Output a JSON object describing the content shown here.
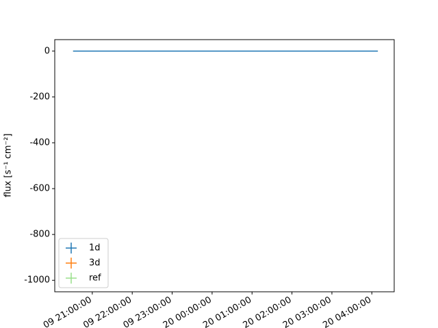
{
  "chart_data": {
    "type": "line",
    "ylabel": "flux [s⁻¹ cm⁻²]",
    "x": [
      -0.48,
      7.15
    ],
    "series": [
      {
        "name": "1d",
        "color": "#1f77b4",
        "values": [
          0,
          0
        ]
      },
      {
        "name": "3d",
        "color": "#ff7f0e",
        "values": [
          0,
          0
        ]
      },
      {
        "name": "ref",
        "color": "#98df8a",
        "values": [
          0,
          0
        ]
      }
    ],
    "xlim": [
      -0.94,
      7.56
    ],
    "xticks": [
      {
        "value": 0,
        "label": "09 21:00:00"
      },
      {
        "value": 1,
        "label": "09 22:00:00"
      },
      {
        "value": 2,
        "label": "09 23:00:00"
      },
      {
        "value": 3,
        "label": "20 00:00:00"
      },
      {
        "value": 4,
        "label": "20 01:00:00"
      },
      {
        "value": 5,
        "label": "20 02:00:00"
      },
      {
        "value": 6,
        "label": "20 03:00:00"
      },
      {
        "value": 7,
        "label": "20 04:00:00"
      }
    ],
    "ylim": [
      -1050,
      50
    ],
    "yticks": [
      0,
      -200,
      -400,
      -600,
      -800,
      -1000
    ],
    "legend": "lower left"
  }
}
